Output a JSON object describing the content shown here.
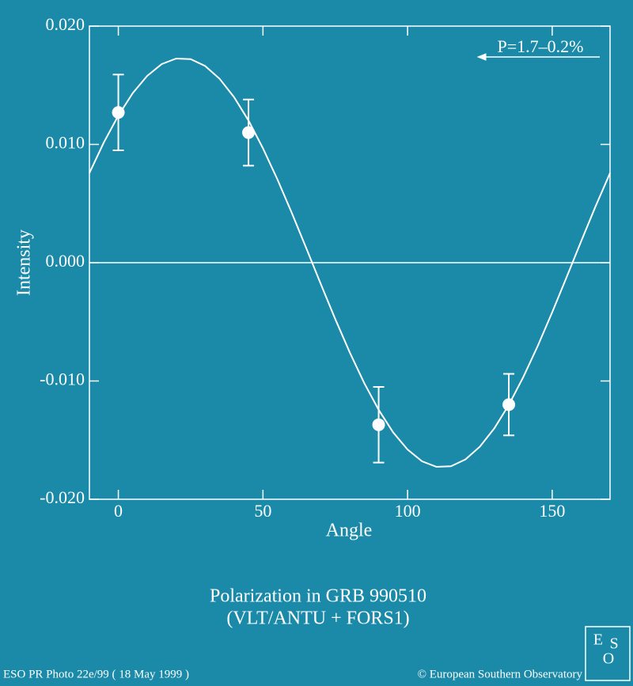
{
  "chart_data": {
    "type": "scatter",
    "xlabel": "Angle",
    "ylabel": "Intensity",
    "title": "Polarization in GRB 990510",
    "subtitle": "(VLT/ANTU + FORS1)",
    "annotation": "P=1.7–0.2%",
    "xlim": [
      -10,
      170
    ],
    "ylim": [
      -0.02,
      0.02
    ],
    "xticks": [
      0,
      50,
      100,
      150
    ],
    "yticks": [
      {
        "value": 0.02,
        "label": "0.020"
      },
      {
        "value": 0.01,
        "label": "0.010"
      },
      {
        "value": 0,
        "label": "0.000"
      },
      {
        "value": -0.01,
        "label": "-0.010"
      },
      {
        "value": -0.02,
        "label": "-0.020"
      }
    ],
    "reference_line": 0,
    "color": "#ffffff",
    "series": [
      {
        "x": [
          0,
          45,
          90,
          135
        ],
        "values": [
          0.0127,
          0.011,
          -0.0137,
          -0.012
        ],
        "errors": [
          0.0032,
          0.0028,
          0.0032,
          0.0026
        ]
      },
      {
        "x": [
          -10,
          -5,
          0,
          5,
          10,
          15,
          20,
          25,
          30,
          35,
          40,
          45,
          50,
          55,
          60,
          65,
          70,
          75,
          80,
          85,
          90,
          95,
          100,
          105,
          110,
          115,
          120,
          125,
          130,
          135,
          140,
          145,
          150,
          155,
          160,
          165,
          170
        ],
        "values": [
          0.00758,
          0.01017,
          0.01244,
          0.01434,
          0.0158,
          0.01679,
          0.01726,
          0.01721,
          0.01663,
          0.01555,
          0.014,
          0.01202,
          0.00967,
          0.00704,
          0.00419,
          0.00121,
          -0.00181,
          -0.00477,
          -0.00758,
          -0.01017,
          -0.01244,
          -0.01434,
          -0.0158,
          -0.01679,
          -0.01726,
          -0.01721,
          -0.01663,
          -0.01555,
          -0.014,
          -0.01202,
          -0.00967,
          -0.00704,
          -0.00419,
          -0.00121,
          0.00181,
          0.00477,
          0.00758
        ]
      }
    ]
  },
  "footer": {
    "left": "ESO PR Photo 22e/99 ( 18 May 1999 )",
    "right": "© European Southern Observatory"
  },
  "logo": [
    "E",
    "S",
    "O"
  ]
}
